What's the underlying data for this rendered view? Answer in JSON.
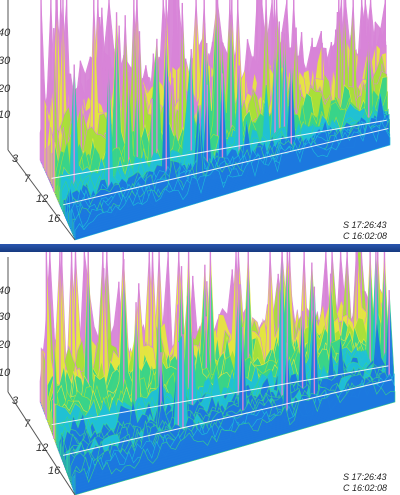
{
  "chart_data": [
    {
      "type": "area",
      "subtype": "3d-waterfall-surface",
      "z_ticks": [
        "40",
        "30",
        "20",
        "10"
      ],
      "y_ticks": [
        "3",
        "7",
        "12",
        "16"
      ],
      "grid": true,
      "colormap": [
        "#1a2fb8",
        "#1c78e0",
        "#1fc0d8",
        "#38d48a",
        "#a8e038",
        "#e6e640",
        "#d884d8"
      ],
      "timestamps": [
        "S 17:26:43",
        "C 16:02:08"
      ],
      "series_levels": {
        "back": 26,
        "mid": 14,
        "front": 7
      }
    },
    {
      "type": "area",
      "subtype": "3d-waterfall-surface",
      "z_ticks": [
        "40",
        "30",
        "20",
        "10"
      ],
      "y_ticks": [
        "3",
        "7",
        "12",
        "16"
      ],
      "grid": true,
      "colormap": [
        "#1a2fb8",
        "#1c78e0",
        "#1fc0d8",
        "#38d48a",
        "#a8e038",
        "#e6e640",
        "#d884d8"
      ],
      "timestamps": [
        "S 17:26:43",
        "C 16:02:08"
      ],
      "series_levels": {
        "back": 18,
        "mid": 12,
        "front": 7
      }
    }
  ]
}
